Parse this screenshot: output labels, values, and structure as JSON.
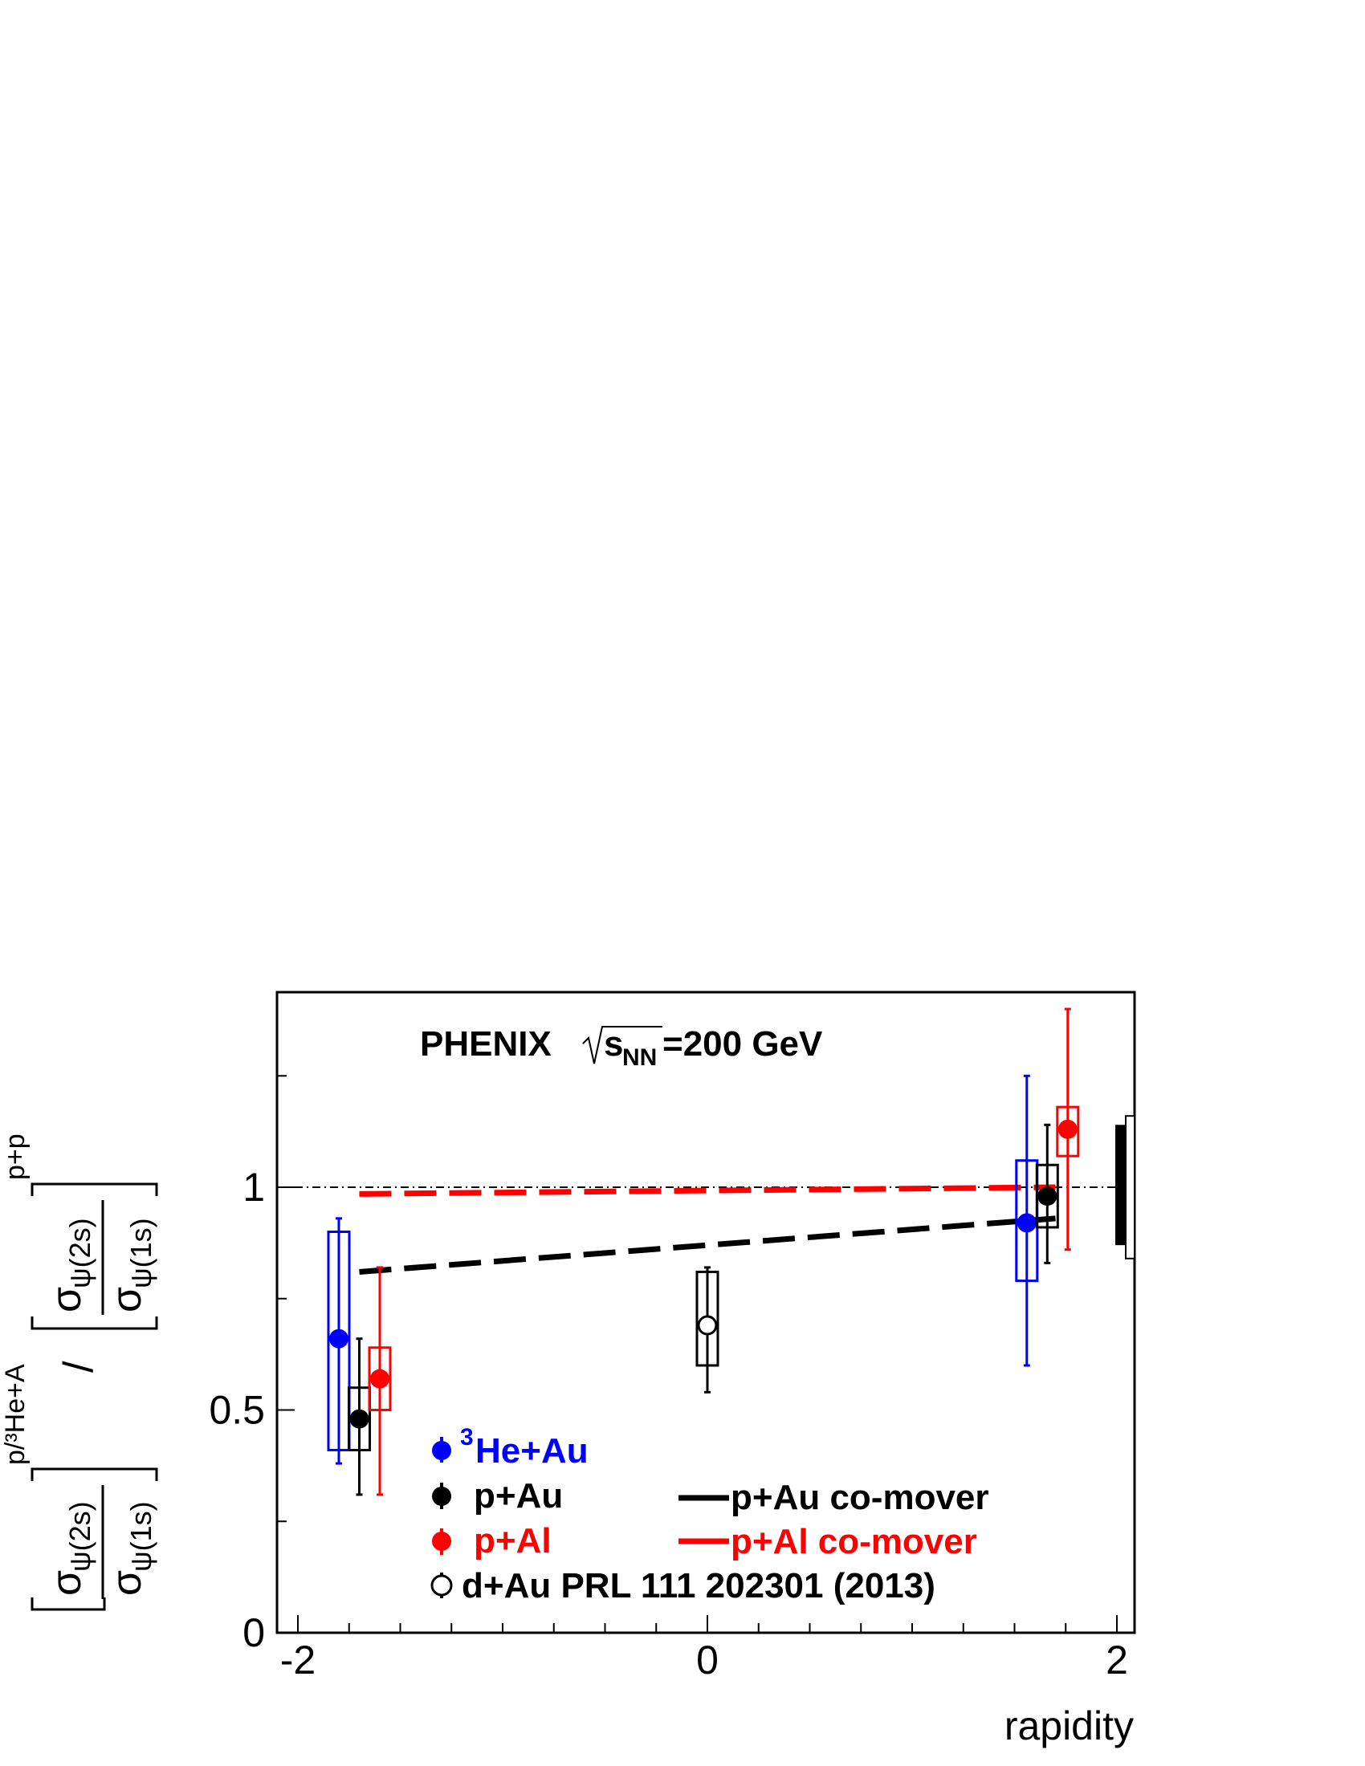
{
  "chart_data": {
    "type": "scatter",
    "title": "PHENIX",
    "energy": {
      "s": "s",
      "sub": "NN",
      "rest": "=200 GeV"
    },
    "xlabel": "rapidity",
    "ylabel": {
      "num_sigma": "σ",
      "num_sub_2s": "ψ(2s)",
      "num_sub_1s": "ψ(1s)",
      "num_sup": "p/³He+A",
      "divider": "/",
      "den_sigma": "σ",
      "den_sub_2s": "ψ(2s)",
      "den_sub_1s": "ψ(1s)",
      "den_sup": "p+p"
    },
    "xlim": [
      -2.1,
      2.1
    ],
    "ylim": [
      0,
      1.45
    ],
    "xticks": [
      -2,
      0,
      2
    ],
    "xtick_labels": [
      "-2",
      "0",
      "2"
    ],
    "yticks": [
      0,
      0.5,
      1
    ],
    "ytick_labels": [
      "0",
      "0.5",
      "1"
    ],
    "reference_line": 1,
    "series": [
      {
        "name": "³He+Au",
        "sup": "3",
        "label": "He+Au",
        "color": "#0000ff",
        "filled": true,
        "points": [
          {
            "x": -1.8,
            "y": 0.66,
            "err_low": 0.28,
            "err_high": 0.27,
            "sys_low": 0.25,
            "sys_high": 0.24
          },
          {
            "x": 1.56,
            "y": 0.92,
            "err_low": 0.32,
            "err_high": 0.33,
            "sys_low": 0.13,
            "sys_high": 0.14
          }
        ]
      },
      {
        "name": "p+Au",
        "label": "p+Au",
        "color": "#000000",
        "filled": true,
        "points": [
          {
            "x": -1.7,
            "y": 0.48,
            "err_low": 0.17,
            "err_high": 0.18,
            "sys_low": 0.07,
            "sys_high": 0.07
          },
          {
            "x": 1.66,
            "y": 0.98,
            "err_low": 0.15,
            "err_high": 0.16,
            "sys_low": 0.07,
            "sys_high": 0.07
          }
        ]
      },
      {
        "name": "p+Al",
        "label": "p+Al",
        "color": "#ff0000",
        "filled": true,
        "points": [
          {
            "x": -1.6,
            "y": 0.57,
            "err_low": 0.26,
            "err_high": 0.25,
            "sys_low": 0.07,
            "sys_high": 0.07
          },
          {
            "x": 1.76,
            "y": 1.13,
            "err_low": 0.27,
            "err_high": 0.27,
            "sys_low": 0.06,
            "sys_high": 0.05
          }
        ]
      },
      {
        "name": "d+Au PRL 111 202301 (2013)",
        "label": "d+Au PRL 111 202301 (2013)",
        "color": "#000000",
        "filled": false,
        "points": [
          {
            "x": 0.0,
            "y": 0.69,
            "err_low": 0.15,
            "err_high": 0.13,
            "sys_low": 0.09,
            "sys_high": 0.12
          }
        ]
      }
    ],
    "curves": [
      {
        "name": "p+Au co-mover",
        "label": "p+Au co-mover",
        "color": "#000000",
        "style": "dashed",
        "x": [
          -1.7,
          1.7
        ],
        "y": [
          0.81,
          0.93
        ]
      },
      {
        "name": "p+Al co-mover",
        "label": "p+Al co-mover",
        "color": "#ff0000",
        "style": "dashed",
        "x": [
          -1.7,
          1.7
        ],
        "y": [
          0.985,
          1.0
        ]
      }
    ],
    "global_uncertainty": [
      {
        "style": "filled",
        "color": "#000000",
        "low": 0.87,
        "high": 1.14
      },
      {
        "style": "open",
        "color": "#000000",
        "low": 0.84,
        "high": 1.16
      }
    ],
    "legend_placement": "bottom"
  }
}
